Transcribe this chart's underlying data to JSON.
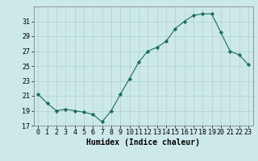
{
  "x": [
    0,
    1,
    2,
    3,
    4,
    5,
    6,
    7,
    8,
    9,
    10,
    11,
    12,
    13,
    14,
    15,
    16,
    17,
    18,
    19,
    20,
    21,
    22,
    23
  ],
  "y": [
    21.2,
    20.0,
    19.0,
    19.2,
    19.0,
    18.8,
    18.5,
    17.5,
    19.0,
    21.2,
    23.3,
    25.5,
    27.0,
    27.5,
    28.3,
    30.0,
    31.0,
    31.8,
    32.0,
    32.0,
    29.5,
    27.0,
    26.5,
    25.2
  ],
  "line_color": "#1a6b5e",
  "marker": "D",
  "marker_size": 2.2,
  "marker_color": "#1a6b5e",
  "bg_color": "#cce8e8",
  "grid_color": "#afd0d0",
  "xlabel": "Humidex (Indice chaleur)",
  "xlim": [
    -0.5,
    23.5
  ],
  "ylim": [
    17,
    33
  ],
  "yticks": [
    17,
    19,
    21,
    23,
    25,
    27,
    29,
    31
  ],
  "xticks": [
    0,
    1,
    2,
    3,
    4,
    5,
    6,
    7,
    8,
    9,
    10,
    11,
    12,
    13,
    14,
    15,
    16,
    17,
    18,
    19,
    20,
    21,
    22,
    23
  ],
  "tick_fontsize": 6.0,
  "xlabel_fontsize": 7.0
}
